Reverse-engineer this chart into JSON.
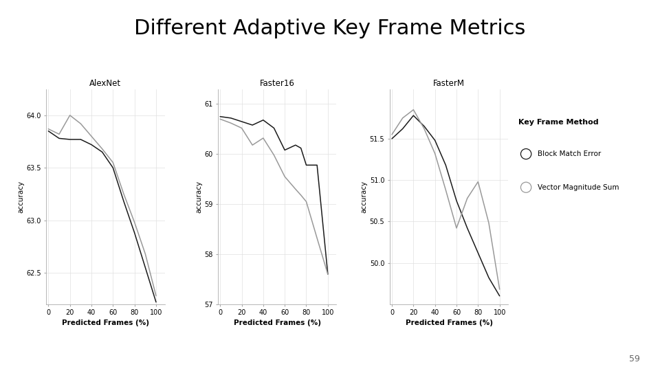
{
  "title": "Different Adaptive Key Frame Metrics",
  "title_fontsize": 22,
  "page_number": "59",
  "subplots": [
    {
      "title": "AlexNet",
      "xlabel": "Predicted Frames (%)",
      "ylabel": "accuracy",
      "xlim": [
        -2,
        108
      ],
      "xticks": [
        0,
        20,
        40,
        60,
        80,
        100
      ],
      "ylim": [
        62.2,
        64.25
      ],
      "yticks": [
        62.5,
        63.0,
        63.5,
        64.0
      ],
      "series": [
        {
          "name": "Block Match Error",
          "color": "#1a1a1a",
          "x": [
            0,
            10,
            20,
            30,
            40,
            50,
            60,
            70,
            80,
            90,
            100
          ],
          "y": [
            63.85,
            63.78,
            63.77,
            63.77,
            63.72,
            63.65,
            63.5,
            63.18,
            62.88,
            62.55,
            62.22
          ]
        },
        {
          "name": "Vector Magnitude Sum",
          "color": "#999999",
          "x": [
            0,
            10,
            20,
            30,
            40,
            50,
            60,
            70,
            80,
            90,
            100
          ],
          "y": [
            63.87,
            63.82,
            64.0,
            63.92,
            63.8,
            63.68,
            63.55,
            63.25,
            62.98,
            62.68,
            62.28
          ]
        }
      ]
    },
    {
      "title": "Faster16",
      "xlabel": "Predicted Frames (%)",
      "ylabel": "accuracy",
      "xlim": [
        -2,
        108
      ],
      "xticks": [
        0,
        20,
        40,
        60,
        80,
        100
      ],
      "ylim": [
        57.0,
        61.3
      ],
      "yticks": [
        57,
        58,
        59,
        60,
        61
      ],
      "series": [
        {
          "name": "Block Match Error",
          "color": "#1a1a1a",
          "x": [
            0,
            10,
            20,
            30,
            40,
            50,
            60,
            70,
            75,
            80,
            90,
            100
          ],
          "y": [
            60.75,
            60.72,
            60.65,
            60.58,
            60.68,
            60.52,
            60.08,
            60.18,
            60.12,
            59.78,
            59.78,
            57.6
          ]
        },
        {
          "name": "Vector Magnitude Sum",
          "color": "#999999",
          "x": [
            0,
            10,
            20,
            30,
            40,
            50,
            60,
            70,
            75,
            80,
            90,
            100
          ],
          "y": [
            60.7,
            60.62,
            60.52,
            60.18,
            60.32,
            59.98,
            59.55,
            59.3,
            59.18,
            59.05,
            58.32,
            57.6
          ]
        }
      ]
    },
    {
      "title": "FasterM",
      "xlabel": "Predicted Frames (%)",
      "ylabel": "accuracy",
      "xlim": [
        -2,
        108
      ],
      "xticks": [
        0,
        20,
        40,
        60,
        80,
        100
      ],
      "ylim": [
        49.5,
        52.1
      ],
      "yticks": [
        50.0,
        50.5,
        51.0,
        51.5
      ],
      "series": [
        {
          "name": "Block Match Error",
          "color": "#1a1a1a",
          "x": [
            0,
            10,
            20,
            30,
            40,
            50,
            60,
            70,
            80,
            90,
            100
          ],
          "y": [
            51.5,
            51.62,
            51.78,
            51.65,
            51.48,
            51.18,
            50.75,
            50.42,
            50.12,
            49.82,
            49.6
          ]
        },
        {
          "name": "Vector Magnitude Sum",
          "color": "#999999",
          "x": [
            0,
            10,
            20,
            30,
            40,
            50,
            60,
            70,
            80,
            90,
            100
          ],
          "y": [
            51.55,
            51.75,
            51.85,
            51.62,
            51.32,
            50.88,
            50.42,
            50.78,
            50.98,
            50.48,
            49.68
          ]
        }
      ]
    }
  ],
  "legend": {
    "title": "Key Frame Method",
    "entries": [
      "Block Match Error",
      "Vector Magnitude Sum"
    ],
    "colors": [
      "#1a1a1a",
      "#999999"
    ]
  },
  "background_color": "#ffffff",
  "grid_color": "#e0e0e0"
}
